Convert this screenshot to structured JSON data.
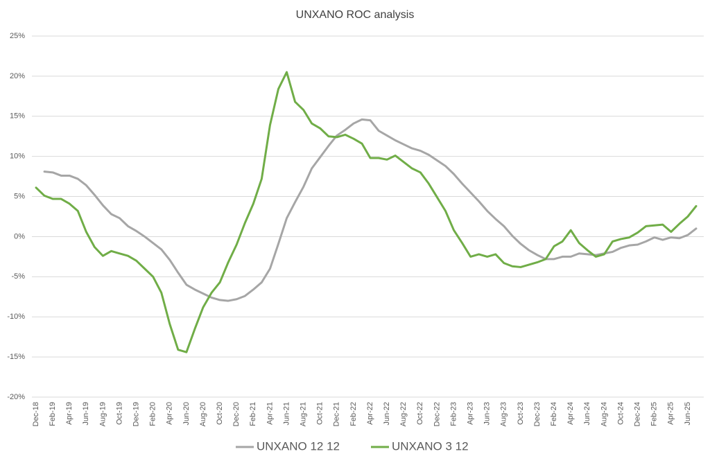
{
  "chart_data": {
    "type": "line",
    "title": "UNXANO ROC analysis",
    "categories": [
      "Dec-18",
      null,
      "Feb-19",
      null,
      "Apr-19",
      null,
      "Jun-19",
      null,
      "Aug-19",
      null,
      "Oct-19",
      null,
      "Dec-19",
      null,
      "Feb-20",
      null,
      "Apr-20",
      null,
      "Jun-20",
      null,
      "Aug-20",
      null,
      "Oct-20",
      null,
      "Dec-20",
      null,
      "Feb-21",
      null,
      "Apr-21",
      null,
      "Jun-21",
      null,
      "Aug-21",
      null,
      "Oct-21",
      null,
      "Dec-21",
      null,
      "Feb-22",
      null,
      "Apr-22",
      null,
      "Jun-22",
      null,
      "Aug-22",
      null,
      "Oct-22",
      null,
      "Dec-22",
      null,
      "Feb-23",
      null,
      "Apr-23",
      null,
      "Jun-23",
      null,
      "Aug-23",
      null,
      "Oct-23",
      null,
      "Dec-23",
      null,
      "Feb-24",
      null,
      "Apr-24",
      null,
      "Jun-24",
      null,
      "Aug-24",
      null,
      "Oct-24",
      null,
      "Dec-24",
      null,
      "Feb-25",
      null,
      "Apr-25",
      null,
      "Jun-25",
      null
    ],
    "series": [
      {
        "name": "UNXANO 12 12",
        "color": "#a6a6a6",
        "values": [
          null,
          8.1,
          8.0,
          7.6,
          7.6,
          7.2,
          6.4,
          5.2,
          3.9,
          2.8,
          2.3,
          1.3,
          0.7,
          0.0,
          -0.8,
          -1.6,
          -2.9,
          -4.5,
          -6.0,
          -6.6,
          -7.1,
          -7.6,
          -7.9,
          -8.0,
          -7.8,
          -7.4,
          -6.6,
          -5.7,
          -4.0,
          -0.9,
          2.3,
          4.3,
          6.2,
          8.5,
          9.9,
          11.3,
          12.6,
          13.3,
          14.1,
          14.6,
          14.5,
          13.2,
          12.6,
          12.0,
          11.5,
          11.0,
          10.7,
          10.2,
          9.5,
          8.8,
          7.8,
          6.6,
          5.5,
          4.4,
          3.2,
          2.2,
          1.3,
          0.1,
          -0.9,
          -1.7,
          -2.3,
          -2.8,
          -2.8,
          -2.5,
          -2.5,
          -2.1,
          -2.2,
          -2.3,
          -2.1,
          -1.9,
          -1.4,
          -1.1,
          -1.0,
          -0.6,
          -0.1,
          -0.4,
          -0.1,
          -0.2,
          0.2,
          1.0
        ]
      },
      {
        "name": "UNXANO 3 12",
        "color": "#70ad47",
        "values": [
          6.1,
          5.1,
          4.7,
          4.7,
          4.1,
          3.2,
          0.6,
          -1.3,
          -2.4,
          -1.8,
          -2.1,
          -2.4,
          -3.0,
          -4.0,
          -5.0,
          -7.0,
          -10.9,
          -14.1,
          -14.4,
          -11.5,
          -8.8,
          -7.0,
          -5.7,
          -3.2,
          -1.0,
          1.7,
          4.1,
          7.2,
          13.9,
          18.4,
          20.5,
          16.8,
          15.8,
          14.1,
          13.5,
          12.5,
          12.4,
          12.7,
          12.2,
          11.6,
          9.8,
          9.8,
          9.6,
          10.1,
          9.3,
          8.5,
          8.0,
          6.6,
          4.9,
          3.2,
          0.8,
          -0.8,
          -2.5,
          -2.2,
          -2.5,
          -2.2,
          -3.3,
          -3.7,
          -3.8,
          -3.5,
          -3.2,
          -2.8,
          -1.2,
          -0.6,
          0.8,
          -0.8,
          -1.7,
          -2.5,
          -2.2,
          -0.6,
          -0.3,
          -0.1,
          0.5,
          1.3,
          1.4,
          1.5,
          0.6,
          1.6,
          2.5,
          3.8
        ]
      }
    ],
    "ylim": [
      -20,
      25
    ],
    "yticks": [
      {
        "value": -20,
        "label": "-20%"
      },
      {
        "value": -15,
        "label": "-15%"
      },
      {
        "value": -10,
        "label": "-10%"
      },
      {
        "value": -5,
        "label": "-5%"
      },
      {
        "value": 0,
        "label": "0%"
      },
      {
        "value": 5,
        "label": "5%"
      },
      {
        "value": 10,
        "label": "10%"
      },
      {
        "value": 15,
        "label": "15%"
      },
      {
        "value": 20,
        "label": "20%"
      },
      {
        "value": 25,
        "label": "25%"
      }
    ],
    "grid": true,
    "legend": "bottom"
  }
}
